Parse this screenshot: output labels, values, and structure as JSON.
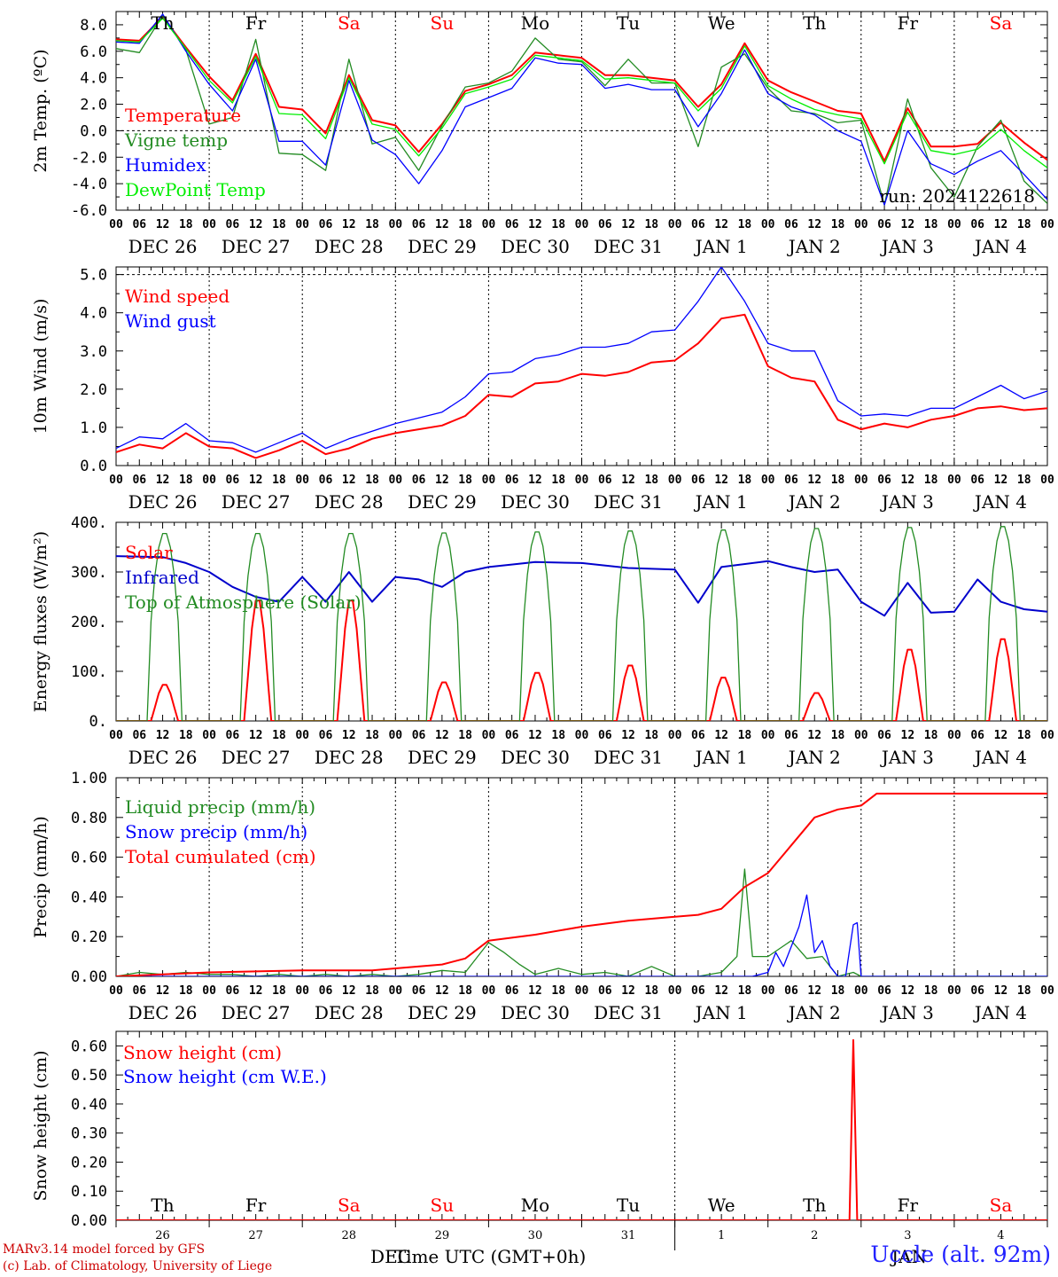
{
  "page": {
    "run_label": "run: 2024122618",
    "station": "Uccle (alt. 92m)",
    "credit_model": "MARv3.14 model forced by GFS",
    "credit_lab": "(c) Lab. of Climatology, University of Liege"
  },
  "axis": {
    "hour_ticks": [
      "00",
      "06",
      "12",
      "18"
    ],
    "date_labels": [
      "DEC 26",
      "DEC 27",
      "DEC 28",
      "DEC 29",
      "DEC 30",
      "DEC 31",
      "JAN  1",
      "JAN  2",
      "JAN  3",
      "JAN  4"
    ],
    "weekdays": [
      "Th",
      "Fr",
      "Sa",
      "Su",
      "Mo",
      "Tu",
      "We",
      "Th",
      "Fr",
      "Sa"
    ],
    "weekday_colors": [
      "#000000",
      "#000000",
      "#ff0000",
      "#ff0000",
      "#000000",
      "#000000",
      "#000000",
      "#000000",
      "#000000",
      "#ff0000"
    ],
    "day_numbers": [
      "26",
      "27",
      "28",
      "29",
      "30",
      "31",
      "1",
      "2",
      "3",
      "4"
    ],
    "month_labels": [
      "DEC",
      "JAN"
    ],
    "xtitle": "Time UTC (GMT+0h)"
  },
  "chart_data": [
    {
      "type": "line",
      "ylabel": "2m Temp. (ºC)",
      "ylim": [
        -6,
        9
      ],
      "yticks": [
        "-6.0",
        "-4.0",
        "-2.0",
        "0.0",
        "2.0",
        "4.0",
        "6.0",
        "8.0"
      ],
      "ytick_values": [
        -6,
        -4,
        -2,
        0,
        2,
        4,
        6,
        8
      ],
      "hline": 0,
      "x_unit": "hours from 2024-12-26 00 UTC",
      "series": [
        {
          "name": "Temperature",
          "color": "#ff0000",
          "x": [
            0,
            6,
            12,
            18,
            24,
            30,
            36,
            42,
            48,
            54,
            60,
            66,
            72,
            78,
            84,
            90,
            96,
            102,
            108,
            114,
            120,
            126,
            132,
            138,
            144,
            150,
            156,
            162,
            168,
            174,
            180,
            186,
            192,
            198,
            204,
            210,
            216,
            222,
            228,
            234,
            240
          ],
          "y": [
            6.9,
            6.8,
            8.6,
            6.3,
            4.1,
            2.3,
            5.8,
            1.8,
            1.6,
            -0.2,
            4.2,
            0.8,
            0.4,
            -1.6,
            0.5,
            3.0,
            3.5,
            4.2,
            5.9,
            5.7,
            5.5,
            4.2,
            4.2,
            4.0,
            3.8,
            1.8,
            3.5,
            6.6,
            3.8,
            2.9,
            2.2,
            1.5,
            1.3,
            -2.3,
            1.7,
            -1.2,
            -1.2,
            -1.0,
            0.6,
            -0.9,
            -2.2
          ]
        },
        {
          "name": "Vigne temp",
          "color": "#228b22",
          "x": [
            0,
            6,
            12,
            18,
            24,
            30,
            36,
            42,
            48,
            54,
            60,
            66,
            72,
            78,
            84,
            90,
            96,
            102,
            108,
            114,
            120,
            126,
            132,
            138,
            144,
            150,
            156,
            162,
            168,
            174,
            180,
            186,
            192,
            198,
            204,
            210,
            216,
            222,
            228,
            234,
            240
          ],
          "y": [
            6.2,
            5.9,
            8.7,
            6.1,
            0.5,
            1.0,
            6.9,
            -1.7,
            -1.8,
            -3.0,
            5.4,
            -1.0,
            -0.5,
            -3.0,
            0.4,
            3.3,
            3.6,
            4.5,
            7.0,
            5.4,
            5.2,
            3.4,
            5.4,
            3.6,
            3.6,
            -1.2,
            4.8,
            5.8,
            3.2,
            1.5,
            1.3,
            0.6,
            0.8,
            -5.6,
            2.4,
            -2.8,
            -5.0,
            -1.2,
            0.8,
            -3.8,
            -5.5
          ]
        },
        {
          "name": "Humidex",
          "color": "#0000ff",
          "x": [
            0,
            6,
            12,
            18,
            24,
            30,
            36,
            42,
            48,
            54,
            60,
            66,
            72,
            78,
            84,
            90,
            96,
            102,
            108,
            114,
            120,
            126,
            132,
            138,
            144,
            150,
            156,
            162,
            168,
            174,
            180,
            186,
            192,
            198,
            204,
            210,
            216,
            222,
            228,
            234,
            240
          ],
          "y": [
            6.7,
            6.6,
            8.8,
            6.0,
            3.5,
            1.5,
            5.4,
            -0.8,
            -0.8,
            -2.6,
            3.8,
            -0.7,
            -1.8,
            -4.0,
            -1.5,
            1.8,
            2.5,
            3.2,
            5.5,
            5.1,
            5.0,
            3.2,
            3.5,
            3.1,
            3.1,
            0.3,
            2.8,
            6.1,
            2.8,
            1.8,
            1.2,
            0.0,
            -0.8,
            -5.6,
            0.0,
            -2.5,
            -3.3,
            -2.3,
            -1.5,
            -3.3,
            -5.2
          ]
        },
        {
          "name": "DewPoint Temp",
          "color": "#00ee00",
          "x": [
            0,
            6,
            12,
            18,
            24,
            30,
            36,
            42,
            48,
            54,
            60,
            66,
            72,
            78,
            84,
            90,
            96,
            102,
            108,
            114,
            120,
            126,
            132,
            138,
            144,
            150,
            156,
            162,
            168,
            174,
            180,
            186,
            192,
            198,
            204,
            210,
            216,
            222,
            228,
            234,
            240
          ],
          "y": [
            6.8,
            6.7,
            8.5,
            6.2,
            3.8,
            2.1,
            5.6,
            1.3,
            1.2,
            -0.6,
            4.0,
            0.5,
            0.1,
            -1.9,
            0.2,
            2.8,
            3.3,
            3.9,
            5.7,
            5.5,
            5.3,
            3.9,
            4.0,
            3.8,
            3.6,
            1.5,
            3.2,
            6.4,
            3.4,
            2.4,
            1.6,
            1.2,
            0.9,
            -2.5,
            1.4,
            -1.5,
            -1.8,
            -1.4,
            0.1,
            -1.5,
            -2.8
          ]
        }
      ]
    },
    {
      "type": "line",
      "ylabel": "10m Wind (m/s)",
      "ylim": [
        0,
        5.2
      ],
      "yticks": [
        "0.0",
        "1.0",
        "2.0",
        "3.0",
        "4.0",
        "5.0"
      ],
      "ytick_values": [
        0,
        1,
        2,
        3,
        4,
        5
      ],
      "hline": 5,
      "series": [
        {
          "name": "Wind speed",
          "color": "#ff0000",
          "x": [
            0,
            6,
            12,
            18,
            24,
            30,
            36,
            42,
            48,
            54,
            60,
            66,
            72,
            78,
            84,
            90,
            96,
            102,
            108,
            114,
            120,
            126,
            132,
            138,
            144,
            150,
            156,
            162,
            168,
            174,
            180,
            186,
            192,
            198,
            204,
            210,
            216,
            222,
            228,
            234,
            240
          ],
          "y": [
            0.35,
            0.55,
            0.45,
            0.85,
            0.5,
            0.45,
            0.2,
            0.4,
            0.65,
            0.3,
            0.45,
            0.7,
            0.85,
            0.95,
            1.05,
            1.3,
            1.85,
            1.8,
            2.15,
            2.2,
            2.4,
            2.35,
            2.45,
            2.7,
            2.75,
            3.2,
            3.85,
            3.95,
            2.6,
            2.3,
            2.2,
            1.2,
            0.95,
            1.1,
            1.0,
            1.2,
            1.3,
            1.5,
            1.55,
            1.45,
            1.5
          ]
        },
        {
          "name": "Wind gust",
          "color": "#0000ff",
          "x": [
            0,
            6,
            12,
            18,
            24,
            30,
            36,
            42,
            48,
            54,
            60,
            66,
            72,
            78,
            84,
            90,
            96,
            102,
            108,
            114,
            120,
            126,
            132,
            138,
            144,
            150,
            156,
            162,
            168,
            174,
            180,
            186,
            192,
            198,
            204,
            210,
            216,
            222,
            228,
            234,
            240
          ],
          "y": [
            0.45,
            0.75,
            0.7,
            1.1,
            0.65,
            0.6,
            0.35,
            0.6,
            0.85,
            0.45,
            0.7,
            0.9,
            1.1,
            1.25,
            1.4,
            1.8,
            2.4,
            2.45,
            2.8,
            2.9,
            3.1,
            3.1,
            3.2,
            3.5,
            3.55,
            4.3,
            5.2,
            4.3,
            3.2,
            3.0,
            3.0,
            1.7,
            1.3,
            1.35,
            1.3,
            1.5,
            1.5,
            1.8,
            2.1,
            1.75,
            1.95
          ]
        }
      ]
    },
    {
      "type": "line",
      "ylabel": "Energy fluxes (W/m²)",
      "ylim": [
        0,
        400
      ],
      "yticks": [
        "0.",
        "100.",
        "200.",
        "300.",
        "400."
      ],
      "ytick_values": [
        0,
        100,
        200,
        300,
        400
      ],
      "series": [
        {
          "name": "Solar",
          "color": "#ff0000",
          "peaks": [
            75,
            250,
            250,
            80,
            100,
            115,
            90,
            58,
            148,
            170
          ]
        },
        {
          "name": "Infrared",
          "color": "#0000cc",
          "x": [
            0,
            12,
            18,
            24,
            30,
            36,
            42,
            48,
            54,
            60,
            66,
            72,
            78,
            84,
            90,
            96,
            108,
            120,
            132,
            144,
            150,
            156,
            168,
            174,
            180,
            186,
            192,
            198,
            204,
            210,
            216,
            222,
            228,
            234,
            240
          ],
          "y": [
            332,
            330,
            318,
            300,
            270,
            250,
            240,
            290,
            240,
            300,
            240,
            290,
            285,
            270,
            300,
            310,
            320,
            318,
            308,
            305,
            238,
            310,
            322,
            310,
            300,
            305,
            240,
            212,
            278,
            218,
            220,
            285,
            240,
            225,
            220
          ]
        },
        {
          "name": "Top of Atmosphere (Solar)",
          "color": "#228b22",
          "peaks": [
            381,
            381,
            381,
            382,
            384,
            386,
            388,
            391,
            393,
            395
          ]
        }
      ]
    },
    {
      "type": "line",
      "ylabel": "Precip (mm/h)",
      "ylim": [
        0,
        1.0
      ],
      "yticks": [
        "0.00",
        "0.20",
        "0.40",
        "0.60",
        "0.80",
        "1.00"
      ],
      "ytick_values": [
        0,
        0.2,
        0.4,
        0.6,
        0.8,
        1.0
      ],
      "series": [
        {
          "name": "Liquid precip (mm/h)",
          "color": "#228b22",
          "x": [
            0,
            6,
            12,
            18,
            24,
            30,
            36,
            42,
            48,
            54,
            60,
            66,
            72,
            78,
            84,
            90,
            96,
            100,
            104,
            108,
            114,
            120,
            126,
            132,
            138,
            144,
            150,
            156,
            160,
            162,
            164,
            168,
            174,
            178,
            182,
            186,
            190,
            192,
            240
          ],
          "y": [
            0.0,
            0.02,
            0.01,
            0.02,
            0.01,
            0.01,
            0.0,
            0.01,
            0.0,
            0.01,
            0.0,
            0.01,
            0.0,
            0.01,
            0.03,
            0.02,
            0.17,
            0.12,
            0.06,
            0.01,
            0.04,
            0.01,
            0.02,
            0.0,
            0.05,
            0.0,
            0.0,
            0.02,
            0.1,
            0.54,
            0.1,
            0.1,
            0.18,
            0.09,
            0.1,
            0.0,
            0.02,
            0.0,
            0.0
          ]
        },
        {
          "name": "Snow precip (mm/h)",
          "color": "#0000ff",
          "x": [
            0,
            164,
            168,
            170,
            172,
            174,
            176,
            178,
            180,
            182,
            184,
            186,
            188,
            190,
            191,
            192,
            240
          ],
          "y": [
            0.0,
            0.0,
            0.02,
            0.12,
            0.05,
            0.15,
            0.25,
            0.41,
            0.12,
            0.18,
            0.05,
            0.0,
            0.0,
            0.26,
            0.27,
            0.0,
            0.0
          ]
        },
        {
          "name": "Total cumulated (cm)",
          "color": "#ff0000",
          "x": [
            0,
            24,
            48,
            66,
            72,
            84,
            90,
            96,
            108,
            120,
            132,
            144,
            150,
            156,
            162,
            168,
            174,
            180,
            186,
            192,
            196,
            240
          ],
          "y": [
            0.0,
            0.02,
            0.03,
            0.03,
            0.04,
            0.06,
            0.09,
            0.18,
            0.21,
            0.25,
            0.28,
            0.3,
            0.31,
            0.34,
            0.45,
            0.52,
            0.66,
            0.8,
            0.84,
            0.86,
            0.92,
            0.92
          ]
        }
      ]
    },
    {
      "type": "line",
      "ylabel": "Snow height (cm)",
      "ylim": [
        0,
        0.65
      ],
      "yticks": [
        "0.00",
        "0.10",
        "0.20",
        "0.30",
        "0.40",
        "0.50",
        "0.60"
      ],
      "ytick_values": [
        0,
        0.1,
        0.2,
        0.3,
        0.4,
        0.5,
        0.6
      ],
      "series": [
        {
          "name": "Snow height (cm)",
          "color": "#ff0000",
          "x": [
            0,
            189,
            190,
            191,
            240
          ],
          "y": [
            0.0,
            0.0,
            0.62,
            0.0,
            0.0
          ]
        },
        {
          "name": "Snow height (cm W.E.)",
          "color": "#0000ff",
          "x": [],
          "y": []
        }
      ]
    }
  ]
}
